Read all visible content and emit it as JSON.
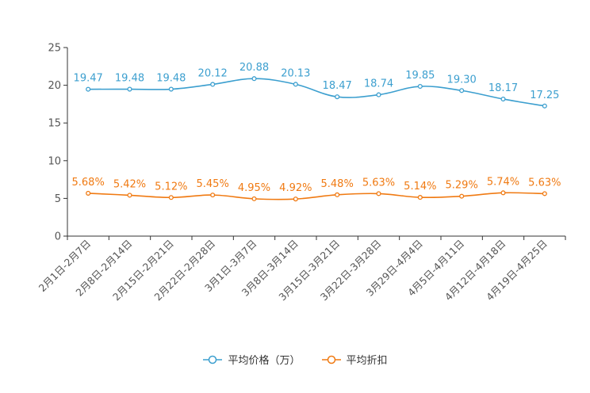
{
  "chart_data": {
    "type": "line",
    "categories": [
      "2月1日-2月7日",
      "2月8日-2月14日",
      "2月15日-2月21日",
      "2月22日-2月28日",
      "3月1日-3月7日",
      "3月8日-3月14日",
      "3月15日-3月21日",
      "3月22日-3月28日",
      "3月29日-4月4日",
      "4月5日-4月11日",
      "4月12日-4月18日",
      "4月19日-4月25日"
    ],
    "ylim": [
      0,
      25
    ],
    "yticks": [
      0,
      5,
      10,
      15,
      20,
      25
    ],
    "series": [
      {
        "name": "平均价格（万）",
        "color": "#3c9fcf",
        "values": [
          19.47,
          19.48,
          19.48,
          20.12,
          20.88,
          20.13,
          18.47,
          18.74,
          19.85,
          19.3,
          18.17,
          17.25
        ],
        "labels": [
          "19.47",
          "19.48",
          "19.48",
          "20.12",
          "20.88",
          "20.13",
          "18.47",
          "18.74",
          "19.85",
          "19.30",
          "18.17",
          "17.25"
        ]
      },
      {
        "name": "平均折扣",
        "color": "#f07a12",
        "values": [
          5.68,
          5.42,
          5.12,
          5.45,
          4.95,
          4.92,
          5.48,
          5.63,
          5.14,
          5.29,
          5.74,
          5.63
        ],
        "labels": [
          "5.68%",
          "5.42%",
          "5.12%",
          "5.45%",
          "4.95%",
          "4.92%",
          "5.48%",
          "5.63%",
          "5.14%",
          "5.29%",
          "5.74%",
          "5.63%"
        ]
      }
    ]
  }
}
